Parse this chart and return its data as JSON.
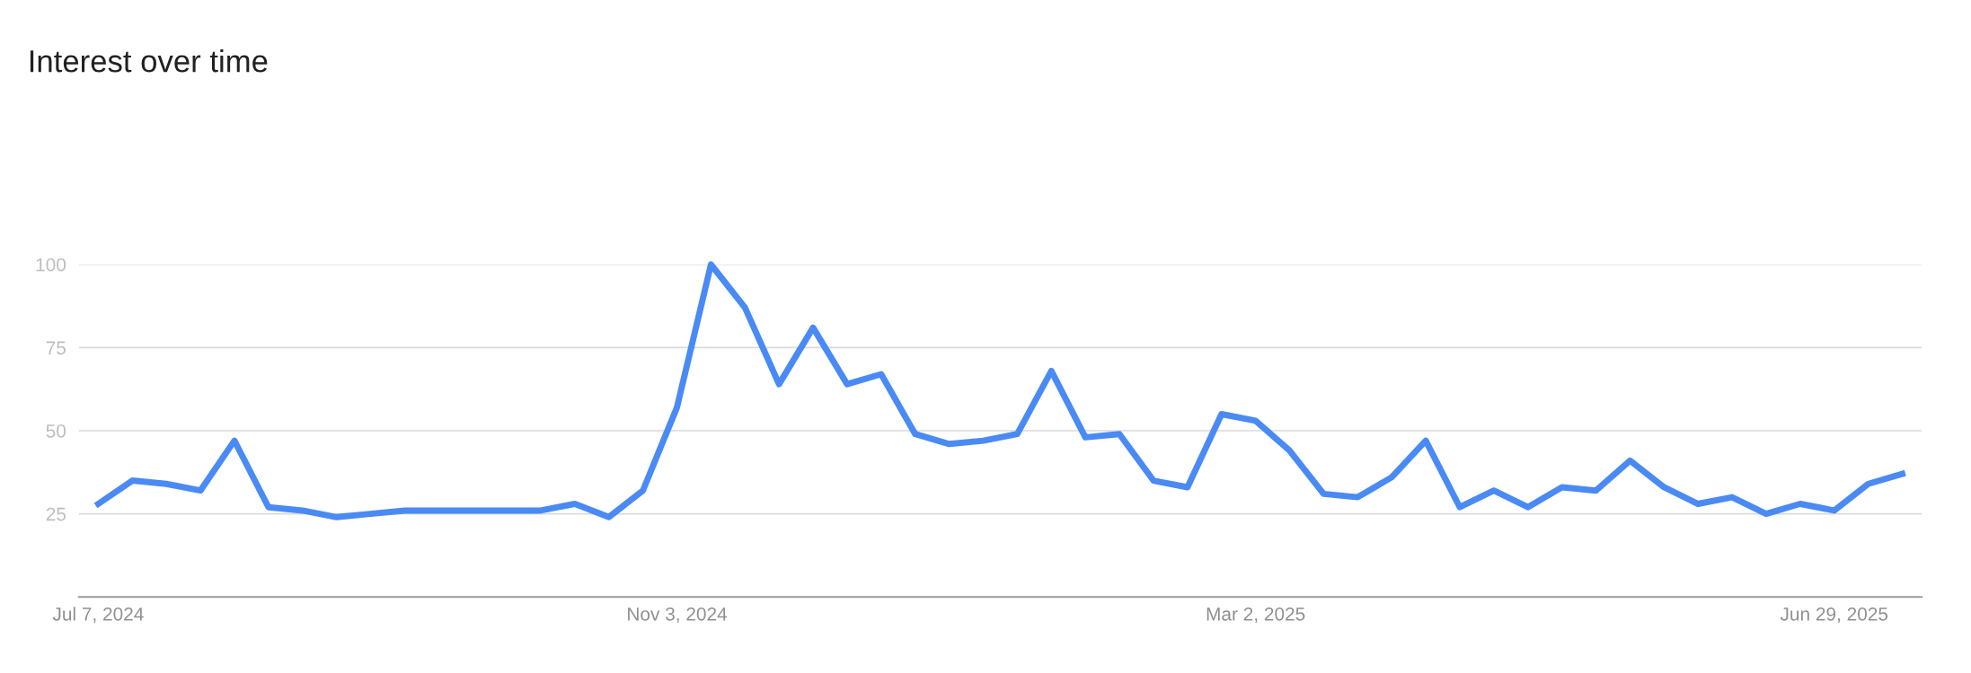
{
  "chart_data": {
    "type": "line",
    "title": "Interest over time",
    "x": [
      "2024-07-07",
      "2024-07-14",
      "2024-07-21",
      "2024-07-28",
      "2024-08-04",
      "2024-08-11",
      "2024-08-18",
      "2024-08-25",
      "2024-09-01",
      "2024-09-08",
      "2024-09-15",
      "2024-09-22",
      "2024-09-29",
      "2024-10-06",
      "2024-10-13",
      "2024-10-20",
      "2024-10-27",
      "2024-11-03",
      "2024-11-10",
      "2024-11-17",
      "2024-11-24",
      "2024-12-01",
      "2024-12-08",
      "2024-12-15",
      "2024-12-22",
      "2024-12-29",
      "2025-01-05",
      "2025-01-12",
      "2025-01-19",
      "2025-01-26",
      "2025-02-02",
      "2025-02-09",
      "2025-02-16",
      "2025-02-23",
      "2025-03-02",
      "2025-03-09",
      "2025-03-16",
      "2025-03-23",
      "2025-03-30",
      "2025-04-06",
      "2025-04-13",
      "2025-04-20",
      "2025-04-27",
      "2025-05-04",
      "2025-05-11",
      "2025-05-18",
      "2025-05-25",
      "2025-06-01",
      "2025-06-08",
      "2025-06-15",
      "2025-06-22",
      "2025-06-29",
      "2025-07-06",
      "2025-07-13"
    ],
    "series": [
      {
        "color": "#4a8af4",
        "values": [
          28,
          35,
          34,
          32,
          47,
          27,
          26,
          24,
          25,
          26,
          26,
          26,
          26,
          26,
          28,
          24,
          32,
          57,
          100,
          87,
          64,
          81,
          64,
          67,
          49,
          46,
          47,
          49,
          68,
          48,
          49,
          35,
          33,
          55,
          53,
          44,
          31,
          30,
          36,
          47,
          27,
          32,
          27,
          33,
          32,
          41,
          33,
          28,
          30,
          25,
          28,
          26,
          34,
          37
        ]
      }
    ],
    "xlim": [
      "2024-07-03",
      "2025-07-17"
    ],
    "xticks": [
      {
        "value": "2024-07-07",
        "label": "Jul 7, 2024"
      },
      {
        "value": "2024-11-03",
        "label": "Nov 3, 2024"
      },
      {
        "value": "2025-03-02",
        "label": "Mar 2, 2025"
      },
      {
        "value": "2025-06-29",
        "label": "Jun 29, 2025"
      }
    ],
    "ylim": [
      0,
      100
    ],
    "yticks": [
      25,
      50,
      75,
      100
    ],
    "grid": "y",
    "legend": false,
    "marker": "none",
    "line_style": "solid"
  }
}
